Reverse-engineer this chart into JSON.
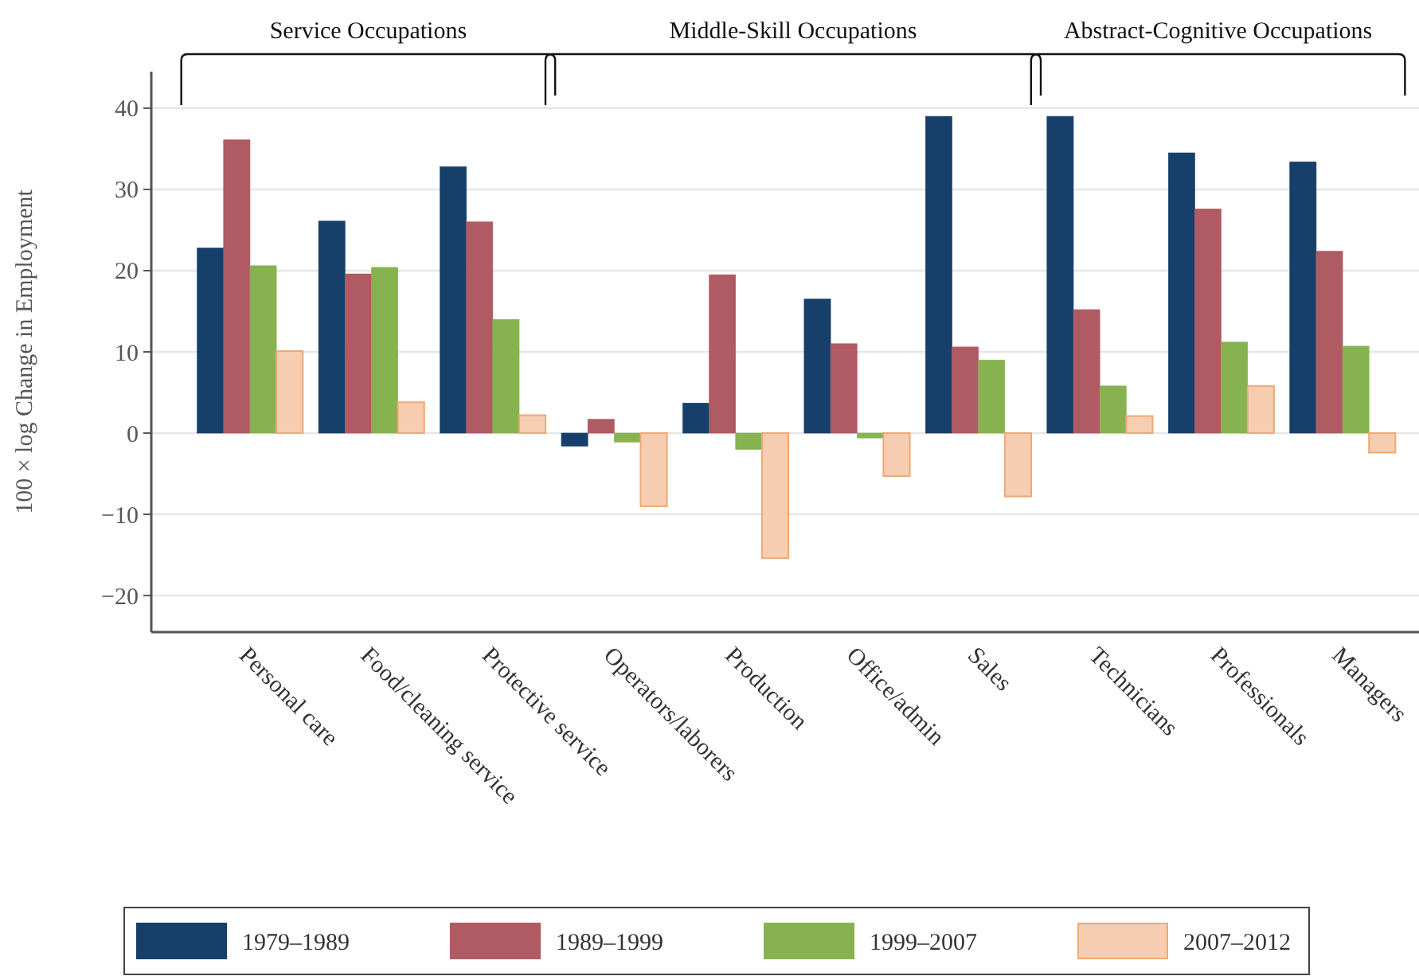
{
  "chart_data": {
    "type": "bar",
    "ylabel": "100 × log Change in Employment",
    "categories": [
      "Personal care",
      "Food/cleaning service",
      "Protective service",
      "Operators/laborers",
      "Production",
      "Office/admin",
      "Sales",
      "Technicians",
      "Professionals",
      "Managers"
    ],
    "series": [
      {
        "name": "1979–1989",
        "color": "#163f6a",
        "values": [
          22.8,
          26.1,
          32.8,
          -1.6,
          3.7,
          16.5,
          39.0,
          39.0,
          34.5,
          33.4
        ]
      },
      {
        "name": "1989–1999",
        "color": "#b05a64",
        "values": [
          36.1,
          19.6,
          26.0,
          1.7,
          19.5,
          11.0,
          10.6,
          15.2,
          27.6,
          22.4
        ]
      },
      {
        "name": "1999–2007",
        "color": "#86b24f",
        "values": [
          20.6,
          20.4,
          14.0,
          -1.1,
          -2.0,
          -0.6,
          9.0,
          5.8,
          11.2,
          10.7
        ]
      },
      {
        "name": "2007–2012",
        "color": "#f6cdb0",
        "values": [
          10.1,
          3.8,
          2.2,
          -9.0,
          -15.4,
          -5.3,
          -7.8,
          2.1,
          5.8,
          -2.4
        ]
      }
    ],
    "ylim": [
      -24.5,
      44.5
    ],
    "yticks": [
      -20,
      -10,
      0,
      10,
      20,
      30,
      40
    ],
    "grid": "y",
    "legend": "bottom",
    "annotations": [
      "Service Occupations",
      "Middle-Skill Occupations",
      "Abstract-Cognitive Occupations"
    ]
  }
}
